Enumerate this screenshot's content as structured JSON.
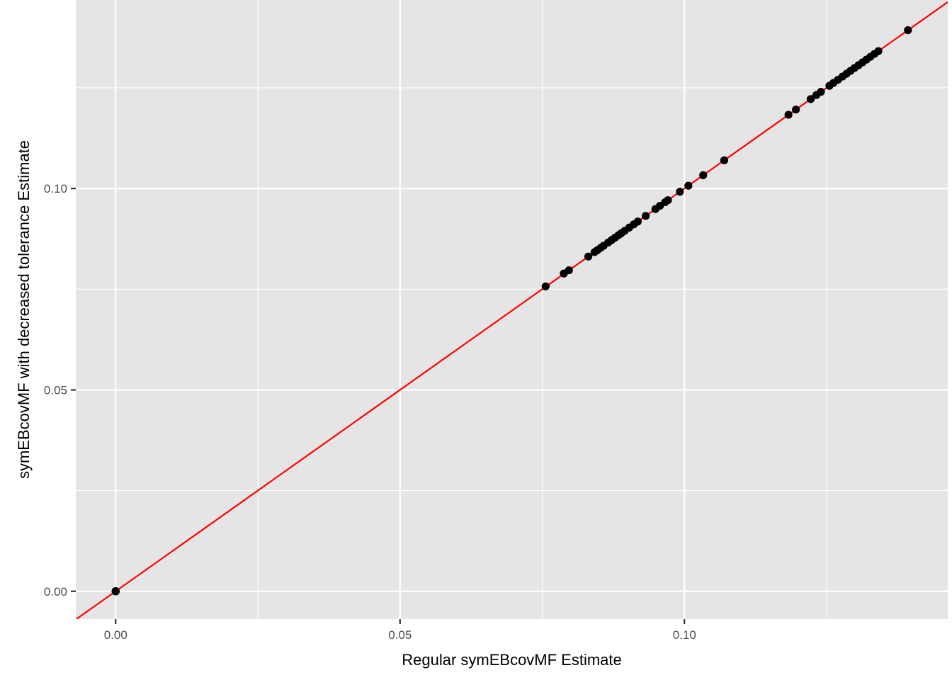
{
  "chart_data": {
    "type": "scatter",
    "title": "",
    "xlabel": "Regular symEBcovMF Estimate",
    "ylabel": "symEBcovMF with decreased tolerance Estimate",
    "xlim": [
      -0.00701,
      0.1463
    ],
    "ylim": [
      -0.0069,
      0.1468
    ],
    "x_ticks": [
      {
        "value": 0.0,
        "label": "0.00"
      },
      {
        "value": 0.05,
        "label": "0.05"
      },
      {
        "value": 0.1,
        "label": "0.10"
      }
    ],
    "y_ticks": [
      {
        "value": 0.0,
        "label": "0.00"
      },
      {
        "value": 0.05,
        "label": "0.05"
      },
      {
        "value": 0.1,
        "label": "0.10"
      }
    ],
    "x_minor": [
      0.025,
      0.075,
      0.125
    ],
    "y_minor": [
      0.025,
      0.075,
      0.125
    ],
    "grid": true,
    "panel_color": "#e5e5e5",
    "grid_color": "#ffffff",
    "point_color": "#000000",
    "reference_line": {
      "slope": 1,
      "intercept": 0,
      "color": "#ff0000"
    },
    "points": [
      [
        0.0,
        0.0
      ],
      [
        0.0,
        0.0
      ],
      [
        0.0,
        0.0
      ],
      [
        0.0,
        0.0
      ],
      [
        0.0756,
        0.0757
      ],
      [
        0.0788,
        0.0789
      ],
      [
        0.0797,
        0.0797
      ],
      [
        0.0831,
        0.0831
      ],
      [
        0.0842,
        0.0842
      ],
      [
        0.0847,
        0.0847
      ],
      [
        0.0853,
        0.0853
      ],
      [
        0.0858,
        0.0858
      ],
      [
        0.0866,
        0.0866
      ],
      [
        0.0872,
        0.0872
      ],
      [
        0.0878,
        0.0878
      ],
      [
        0.0884,
        0.0884
      ],
      [
        0.0889,
        0.0889
      ],
      [
        0.0895,
        0.0895
      ],
      [
        0.0903,
        0.0903
      ],
      [
        0.0911,
        0.0911
      ],
      [
        0.0918,
        0.0918
      ],
      [
        0.0932,
        0.0932
      ],
      [
        0.0949,
        0.0949
      ],
      [
        0.0957,
        0.0957
      ],
      [
        0.0966,
        0.0966
      ],
      [
        0.0971,
        0.0971
      ],
      [
        0.0992,
        0.0992
      ],
      [
        0.1007,
        0.1007
      ],
      [
        0.1033,
        0.1033
      ],
      [
        0.107,
        0.107
      ],
      [
        0.1183,
        0.1183
      ],
      [
        0.1196,
        0.1196
      ],
      [
        0.1222,
        0.1222
      ],
      [
        0.1232,
        0.1232
      ],
      [
        0.124,
        0.124
      ],
      [
        0.1255,
        0.1255
      ],
      [
        0.1262,
        0.1262
      ],
      [
        0.127,
        0.127
      ],
      [
        0.1278,
        0.1278
      ],
      [
        0.1285,
        0.1285
      ],
      [
        0.1292,
        0.1292
      ],
      [
        0.1299,
        0.1299
      ],
      [
        0.1306,
        0.1306
      ],
      [
        0.1313,
        0.1313
      ],
      [
        0.132,
        0.132
      ],
      [
        0.1327,
        0.1327
      ],
      [
        0.1334,
        0.1334
      ],
      [
        0.1341,
        0.1341
      ],
      [
        0.1393,
        0.1393
      ]
    ]
  }
}
